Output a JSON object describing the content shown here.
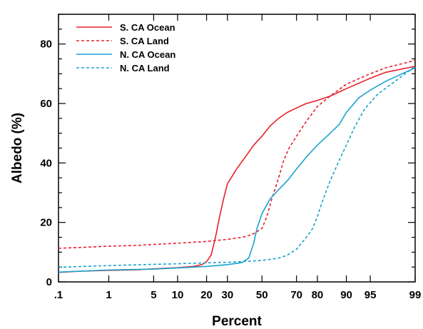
{
  "chart_data": {
    "type": "line",
    "title": "",
    "xlabel": "Percent",
    "ylabel": "Albedo (%)",
    "x_scale": "normal-probability",
    "x_ticks": [
      ".1",
      "1",
      "5",
      "10",
      "20",
      "30",
      "50",
      "70",
      "80",
      "90",
      "95",
      "99"
    ],
    "x_tick_values": [
      0.1,
      1,
      5,
      10,
      20,
      30,
      50,
      70,
      80,
      90,
      95,
      99
    ],
    "y_ticks": [
      "0",
      "20",
      "40",
      "60",
      "80"
    ],
    "ylim": [
      0,
      90
    ],
    "xlim": [
      0.1,
      99
    ],
    "grid": false,
    "legend_position": "top-left",
    "series": [
      {
        "name": "S. CA Ocean",
        "color": "#e8202a",
        "dash": "solid",
        "points": [
          [
            0.1,
            3.2
          ],
          [
            0.3,
            3.6
          ],
          [
            1,
            3.9
          ],
          [
            3,
            4.1
          ],
          [
            5,
            4.4
          ],
          [
            10,
            4.8
          ],
          [
            15,
            5.2
          ],
          [
            18,
            5.8
          ],
          [
            20,
            6.8
          ],
          [
            22,
            9
          ],
          [
            24,
            15
          ],
          [
            26,
            22
          ],
          [
            28,
            28
          ],
          [
            30,
            33
          ],
          [
            32,
            35
          ],
          [
            35,
            38
          ],
          [
            40,
            42
          ],
          [
            45,
            46
          ],
          [
            50,
            49
          ],
          [
            55,
            52.5
          ],
          [
            60,
            55
          ],
          [
            65,
            57
          ],
          [
            70,
            58.5
          ],
          [
            75,
            60
          ],
          [
            80,
            61
          ],
          [
            85,
            62.5
          ],
          [
            90,
            65
          ],
          [
            95,
            68.5
          ],
          [
            97,
            70.5
          ],
          [
            99,
            72.5
          ]
        ]
      },
      {
        "name": "S. CA Land",
        "color": "#e8202a",
        "dash": "dashed",
        "points": [
          [
            0.1,
            11.3
          ],
          [
            0.3,
            11.6
          ],
          [
            1,
            12
          ],
          [
            3,
            12.3
          ],
          [
            5,
            12.6
          ],
          [
            10,
            13
          ],
          [
            20,
            13.6
          ],
          [
            30,
            14.3
          ],
          [
            40,
            15.2
          ],
          [
            45,
            16.2
          ],
          [
            50,
            18
          ],
          [
            53,
            22
          ],
          [
            56,
            28
          ],
          [
            60,
            35
          ],
          [
            63,
            41
          ],
          [
            66,
            45
          ],
          [
            70,
            49
          ],
          [
            75,
            54
          ],
          [
            80,
            59
          ],
          [
            85,
            62.5
          ],
          [
            90,
            66.5
          ],
          [
            95,
            70
          ],
          [
            97,
            72
          ],
          [
            99,
            74.5
          ]
        ]
      },
      {
        "name": "N. CA Ocean",
        "color": "#1aa3cf",
        "dash": "solid",
        "points": [
          [
            0.1,
            3.3
          ],
          [
            1,
            4
          ],
          [
            5,
            4.3
          ],
          [
            10,
            4.7
          ],
          [
            20,
            5.2
          ],
          [
            30,
            5.8
          ],
          [
            38,
            6.5
          ],
          [
            42,
            8
          ],
          [
            45,
            13
          ],
          [
            47,
            18
          ],
          [
            50,
            23
          ],
          [
            55,
            28
          ],
          [
            60,
            31
          ],
          [
            65,
            34
          ],
          [
            70,
            38
          ],
          [
            75,
            42
          ],
          [
            80,
            46
          ],
          [
            85,
            50
          ],
          [
            88,
            53
          ],
          [
            90,
            57
          ],
          [
            93,
            62
          ],
          [
            95,
            64.5
          ],
          [
            97,
            67.5
          ],
          [
            99,
            72
          ]
        ]
      },
      {
        "name": "N. CA Land",
        "color": "#1aa3cf",
        "dash": "dashed",
        "points": [
          [
            0.1,
            4.9
          ],
          [
            1,
            5.5
          ],
          [
            5,
            5.9
          ],
          [
            10,
            6.1
          ],
          [
            20,
            6.4
          ],
          [
            30,
            6.6
          ],
          [
            40,
            6.9
          ],
          [
            50,
            7.2
          ],
          [
            60,
            8
          ],
          [
            65,
            9
          ],
          [
            70,
            11
          ],
          [
            75,
            15
          ],
          [
            78,
            18
          ],
          [
            80,
            22
          ],
          [
            82,
            27
          ],
          [
            85,
            34
          ],
          [
            88,
            41
          ],
          [
            90,
            46
          ],
          [
            92,
            52
          ],
          [
            94,
            58
          ],
          [
            96,
            63
          ],
          [
            98,
            68
          ],
          [
            99,
            72.5
          ]
        ]
      }
    ]
  }
}
